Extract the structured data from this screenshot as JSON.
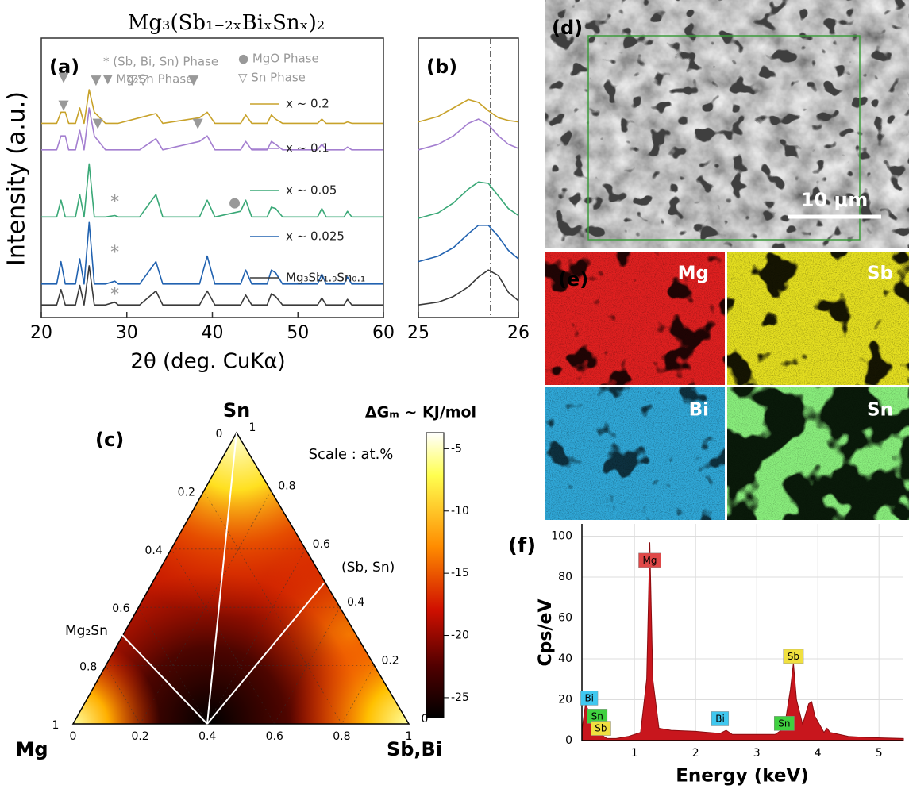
{
  "title": "Mg₃(Sb₁₋₂ₓBiₓSnₓ)₂",
  "chart_data": [
    {
      "type": "line",
      "label": "(a)",
      "xlabel": "2θ (deg. CuKα)",
      "ylabel": "Intensity (a.u.)",
      "x": [
        20,
        21.8,
        22.3,
        22.8,
        23.2,
        24.0,
        24.5,
        25.0,
        25.6,
        26.2,
        27.5,
        28.6,
        29,
        31.5,
        33.4,
        34.2,
        38.5,
        39.4,
        40.3,
        43.3,
        43.9,
        44.6,
        46.4,
        46.9,
        47.4,
        48.2,
        52.3,
        52.8,
        53.3,
        55.4,
        55.8,
        56.3,
        60
      ],
      "xlim": [
        20,
        60
      ],
      "xticks": [
        20,
        30,
        40,
        50,
        60
      ],
      "ylim": [
        0,
        10
      ],
      "series": [
        {
          "name": "x ~ 0.2",
          "color": "#c8a22a",
          "values": [
            6.95,
            6.95,
            7.35,
            7.35,
            6.95,
            6.95,
            7.5,
            6.95,
            8.15,
            7.35,
            6.95,
            6.95,
            6.95,
            7.15,
            7.3,
            6.95,
            7.15,
            7.35,
            6.95,
            6.95,
            7.25,
            6.95,
            6.95,
            7.25,
            7.1,
            6.95,
            6.95,
            7.1,
            6.95,
            6.95,
            7.0,
            6.95,
            6.95
          ]
        },
        {
          "name": "x ~ 0.1",
          "color": "#a47fd0",
          "values": [
            6.0,
            6.0,
            6.5,
            6.5,
            6.0,
            6.0,
            6.7,
            6.0,
            7.5,
            6.5,
            6.0,
            6.0,
            6.0,
            6.0,
            6.4,
            6.0,
            6.3,
            6.5,
            6.0,
            6.0,
            6.3,
            6.0,
            6.0,
            6.3,
            6.2,
            6.0,
            6.0,
            6.2,
            6.0,
            6.0,
            6.1,
            6.0,
            6.0
          ]
        },
        {
          "name": "x ~ 0.05",
          "color": "#3aa877",
          "values": [
            3.6,
            3.6,
            4.2,
            3.6,
            3.6,
            3.6,
            4.4,
            3.6,
            5.5,
            3.6,
            3.6,
            3.65,
            3.6,
            3.6,
            4.4,
            3.6,
            3.6,
            4.2,
            3.6,
            3.8,
            4.2,
            3.6,
            3.6,
            3.95,
            3.9,
            3.6,
            3.6,
            3.9,
            3.6,
            3.6,
            3.8,
            3.6,
            3.6
          ]
        },
        {
          "name": "x ~ 0.025",
          "color": "#2162b0",
          "values": [
            1.2,
            1.2,
            2.0,
            1.2,
            1.2,
            1.2,
            2.1,
            1.2,
            3.4,
            1.2,
            1.2,
            1.3,
            1.2,
            1.2,
            2.0,
            1.2,
            1.2,
            2.2,
            1.2,
            1.2,
            1.7,
            1.2,
            1.2,
            1.7,
            1.6,
            1.2,
            1.2,
            1.55,
            1.2,
            1.2,
            1.45,
            1.2,
            1.2
          ]
        },
        {
          "name": "Mg₃Sb₁.₉Sn₀.₁",
          "color": "#3a3a3a",
          "values": [
            0.45,
            0.45,
            1.0,
            0.45,
            0.45,
            0.45,
            1.15,
            0.45,
            1.85,
            0.45,
            0.45,
            0.55,
            0.45,
            0.45,
            0.95,
            0.45,
            0.45,
            0.95,
            0.45,
            0.45,
            0.8,
            0.45,
            0.45,
            0.85,
            0.75,
            0.45,
            0.45,
            0.7,
            0.45,
            0.45,
            0.65,
            0.45,
            0.45
          ]
        }
      ],
      "phase_legend": [
        "* (Sb, Bi, Sn) Phase",
        "▼ Mg₂Sn Phase",
        "● MgO Phase",
        "▽ Sn Phase"
      ],
      "phase_markers": [
        {
          "symbol": "▼",
          "x": 22.6,
          "y": 8.6
        },
        {
          "symbol": "▼",
          "x": 26.4,
          "y": 8.5
        },
        {
          "symbol": "▽",
          "x": 30.6,
          "y": 8.5
        },
        {
          "symbol": "▽",
          "x": 31.9,
          "y": 8.5
        },
        {
          "symbol": "▼",
          "x": 37.8,
          "y": 8.5
        },
        {
          "symbol": "▼",
          "x": 22.6,
          "y": 7.6
        },
        {
          "symbol": "▼",
          "x": 26.6,
          "y": 6.95
        },
        {
          "symbol": "▼",
          "x": 38.3,
          "y": 6.95
        },
        {
          "symbol": "*",
          "x": 28.6,
          "y": 4.1
        },
        {
          "symbol": "●",
          "x": 42.6,
          "y": 4.1
        },
        {
          "symbol": "*",
          "x": 28.6,
          "y": 2.3
        },
        {
          "symbol": "*",
          "x": 28.6,
          "y": 0.8
        }
      ]
    },
    {
      "type": "line",
      "label": "(b)",
      "x": [
        25,
        25.2,
        25.35,
        25.5,
        25.6,
        25.7,
        25.8,
        25.9,
        26
      ],
      "xlim": [
        25,
        26
      ],
      "xticks": [
        25,
        26
      ],
      "ylim": [
        0,
        10
      ],
      "vline": 25.72,
      "series": [
        {
          "color": "#c8a22a",
          "values": [
            7.0,
            7.2,
            7.5,
            7.8,
            7.7,
            7.4,
            7.15,
            7.05,
            7.0
          ]
        },
        {
          "color": "#a47fd0",
          "values": [
            6.0,
            6.2,
            6.5,
            6.95,
            7.1,
            6.9,
            6.5,
            6.2,
            6.05
          ]
        },
        {
          "color": "#3aa877",
          "values": [
            3.55,
            3.75,
            4.1,
            4.6,
            4.85,
            4.8,
            4.35,
            3.9,
            3.65
          ]
        },
        {
          "color": "#2162b0",
          "values": [
            2.0,
            2.2,
            2.5,
            3.0,
            3.3,
            3.3,
            2.9,
            2.4,
            2.1
          ]
        },
        {
          "color": "#3a3a3a",
          "values": [
            0.45,
            0.55,
            0.75,
            1.1,
            1.45,
            1.7,
            1.5,
            0.9,
            0.6
          ]
        }
      ]
    },
    {
      "type": "area",
      "label": "(f)",
      "xlabel": "Energy (keV)",
      "ylabel": "Cps/eV",
      "color": "#c8161d",
      "x": [
        0.14,
        0.2,
        0.28,
        0.35,
        0.45,
        0.55,
        0.7,
        0.9,
        1.1,
        1.2,
        1.25,
        1.3,
        1.4,
        1.6,
        2.0,
        2.4,
        2.5,
        2.6,
        3.0,
        3.3,
        3.45,
        3.55,
        3.6,
        3.65,
        3.75,
        3.85,
        3.9,
        3.95,
        4.1,
        4.15,
        4.2,
        4.35,
        4.5,
        4.8,
        5.4
      ],
      "values": [
        5,
        18,
        12,
        8,
        3,
        1,
        1,
        2,
        4,
        30,
        97,
        30,
        6,
        5,
        4.5,
        3.5,
        5,
        3,
        3,
        3,
        6,
        25,
        38,
        20,
        8,
        18,
        19,
        12,
        4,
        6,
        4,
        3,
        2,
        1.5,
        1
      ],
      "xlim": [
        0.14,
        5.4
      ],
      "xticks": [
        1,
        2,
        3,
        4,
        5
      ],
      "ylim": [
        0,
        106
      ],
      "yticks": [
        0,
        20,
        40,
        60,
        80,
        100
      ],
      "grid": true,
      "annotations": [
        {
          "text": "Mg",
          "x": 1.25,
          "y": 88,
          "color": "#e04848"
        },
        {
          "text": "Sb",
          "x": 3.6,
          "y": 41,
          "color": "#f0e040"
        },
        {
          "text": "Bi",
          "x": 0.26,
          "y": 20.6,
          "color": "#40c8f0"
        },
        {
          "text": "Sn",
          "x": 0.39,
          "y": 11.7,
          "color": "#40d040"
        },
        {
          "text": "Sb",
          "x": 0.45,
          "y": 5.8,
          "color": "#f0e040"
        },
        {
          "text": "Bi",
          "x": 2.4,
          "y": 10.5,
          "color": "#40c8f0"
        },
        {
          "text": "Sn",
          "x": 3.45,
          "y": 8.2,
          "color": "#40d040"
        }
      ]
    }
  ],
  "ternary": {
    "label": "(c)",
    "vertices": [
      "Mg",
      "Sb,Bi",
      "Sn"
    ],
    "left_ticks": [
      0,
      0.2,
      0.4,
      0.6,
      0.8,
      1
    ],
    "right_ticks": [
      1,
      0.8,
      0.6,
      0.4,
      0.2,
      0
    ],
    "bottom_ticks": [
      0,
      0.2,
      0.4,
      0.6,
      0.8,
      1
    ],
    "colorbar_label": "ΔGₘ ~ KJ/mol",
    "scale_note": "Scale : at.%",
    "colorbar_lim": [
      -26.6,
      -3.7
    ],
    "colorbar_ticks": [
      -5,
      -10,
      -15,
      -20,
      -25
    ],
    "annotations": [
      "Mg₂Sn",
      "(Sb, Sn)"
    ]
  },
  "sem": {
    "label": "(d)",
    "scale_bar": "10 μm"
  },
  "maps": {
    "label": "(e)",
    "elements": [
      "Mg",
      "Sb",
      "Bi",
      "Sn"
    ]
  }
}
